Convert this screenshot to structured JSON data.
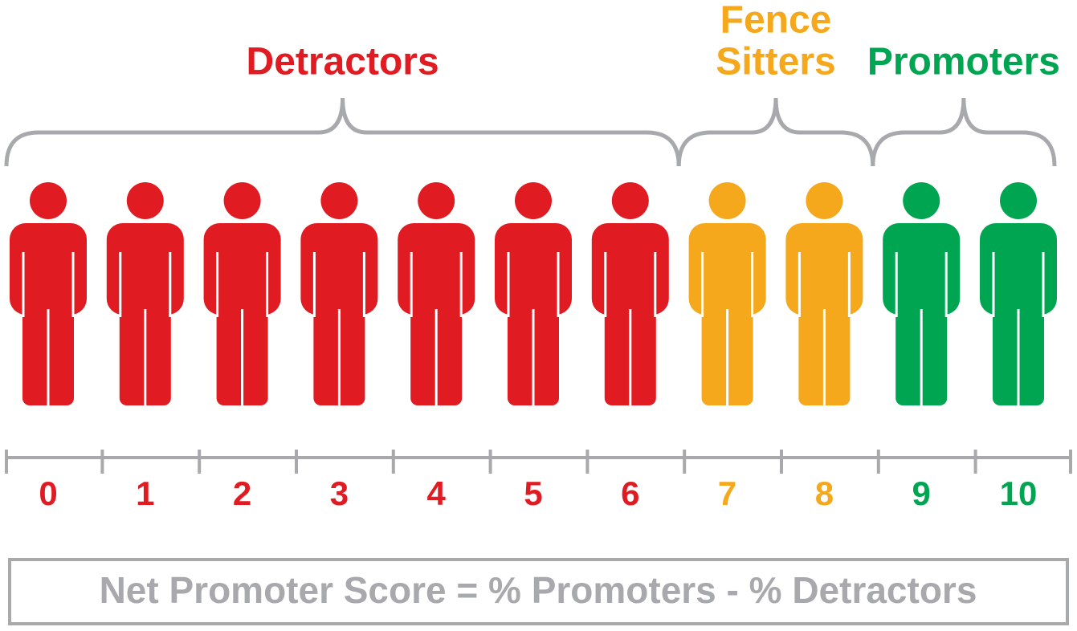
{
  "groups": [
    {
      "label": [
        "Detractors"
      ],
      "color": "#e01b22",
      "scores": [
        0,
        1,
        2,
        3,
        4,
        5,
        6
      ]
    },
    {
      "label": [
        "Fence",
        "Sitters"
      ],
      "color": "#f5a81c",
      "scores": [
        7,
        8
      ]
    },
    {
      "label": [
        "Promoters"
      ],
      "color": "#00a551",
      "scores": [
        9,
        10
      ]
    }
  ],
  "formula": "Net Promoter Score = % Promoters - % Detractors"
}
